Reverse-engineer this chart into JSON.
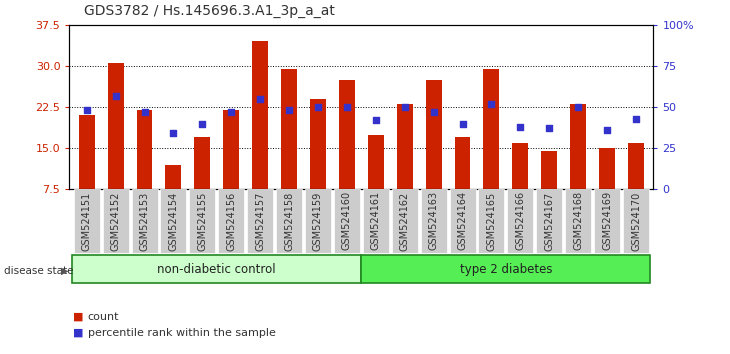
{
  "title": "GDS3782 / Hs.145696.3.A1_3p_a_at",
  "samples": [
    "GSM524151",
    "GSM524152",
    "GSM524153",
    "GSM524154",
    "GSM524155",
    "GSM524156",
    "GSM524157",
    "GSM524158",
    "GSM524159",
    "GSM524160",
    "GSM524161",
    "GSM524162",
    "GSM524163",
    "GSM524164",
    "GSM524165",
    "GSM524166",
    "GSM524167",
    "GSM524168",
    "GSM524169",
    "GSM524170"
  ],
  "counts": [
    21.0,
    30.5,
    22.0,
    12.0,
    17.0,
    22.0,
    34.5,
    29.5,
    24.0,
    27.5,
    17.5,
    23.0,
    27.5,
    17.0,
    29.5,
    16.0,
    14.5,
    23.0,
    15.0,
    16.0
  ],
  "percentiles": [
    48,
    57,
    47,
    34,
    40,
    47,
    55,
    48,
    50,
    50,
    42,
    50,
    47,
    40,
    52,
    38,
    37,
    50,
    36,
    43
  ],
  "ylim_left": [
    7.5,
    37.5
  ],
  "ylim_right": [
    0,
    100
  ],
  "yticks_left": [
    7.5,
    15.0,
    22.5,
    30.0,
    37.5
  ],
  "yticks_right": [
    0,
    25,
    50,
    75,
    100
  ],
  "ytick_labels_right": [
    "0",
    "25",
    "50",
    "75",
    "100%"
  ],
  "bar_color": "#CC2200",
  "marker_color": "#3333CC",
  "bar_width": 0.55,
  "non_diabetic_label": "non-diabetic control",
  "diabetic_label": "type 2 diabetes",
  "non_diabetic_count": 10,
  "diabetic_count": 10,
  "disease_state_label": "disease state",
  "legend_count_label": "count",
  "legend_percentile_label": "percentile rank within the sample",
  "non_diabetic_color": "#CCFFCC",
  "diabetic_color": "#55EE55",
  "group_border_color": "#228822",
  "left_tick_color": "#CC2200",
  "right_tick_color": "#3333CC",
  "tick_label_bg": "#CCCCCC",
  "grid_color": "#000000",
  "title_fontsize": 10,
  "tick_fontsize": 7,
  "ytick_fontsize": 8
}
